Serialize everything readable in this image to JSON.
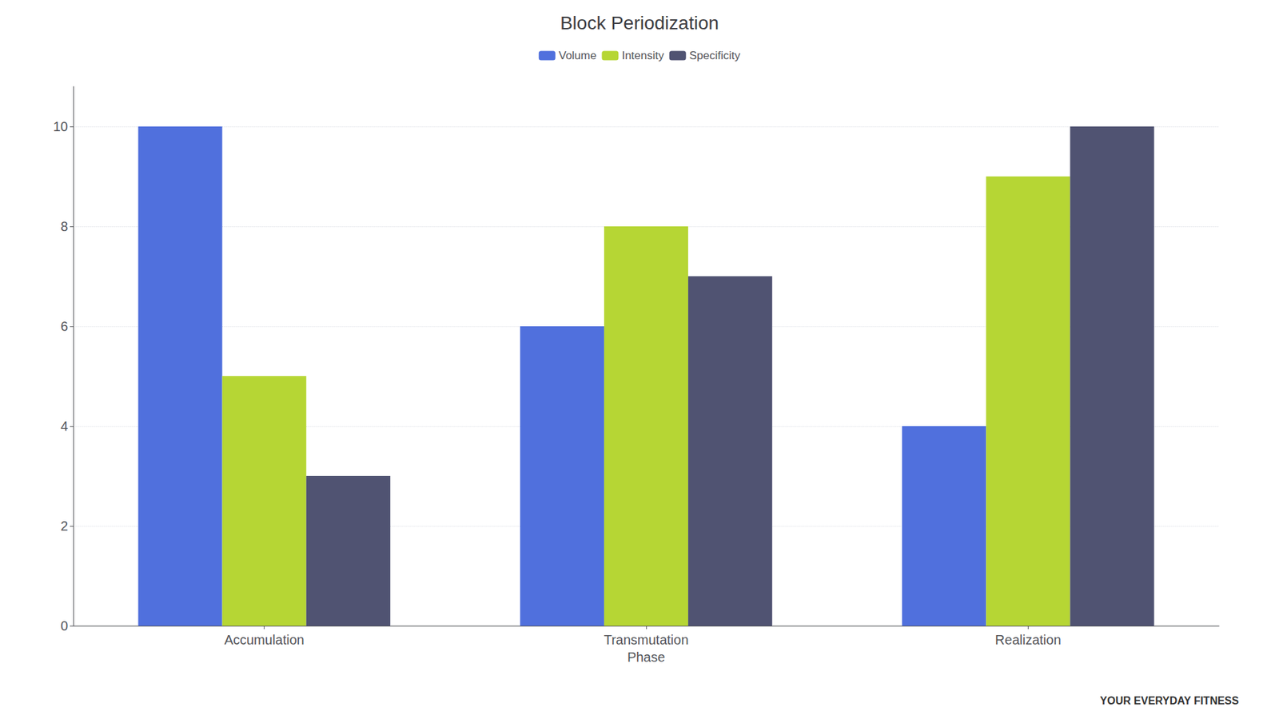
{
  "chart_data": {
    "type": "bar",
    "title": "Block Periodization",
    "categories": [
      "Accumulation",
      "Transmutation\nPhase",
      "Realization"
    ],
    "series": [
      {
        "name": "Volume",
        "values": [
          10,
          6,
          4
        ]
      },
      {
        "name": "Intensity",
        "values": [
          5,
          8,
          9
        ]
      },
      {
        "name": "Specificity",
        "values": [
          3,
          7,
          10
        ]
      }
    ],
    "ylim": [
      0,
      10.8
    ],
    "yticks": [
      0,
      2,
      4,
      6,
      8,
      10
    ],
    "grid": true,
    "legend": "top",
    "annotations": [
      "YOUR EVERYDAY FITNESS"
    ]
  }
}
